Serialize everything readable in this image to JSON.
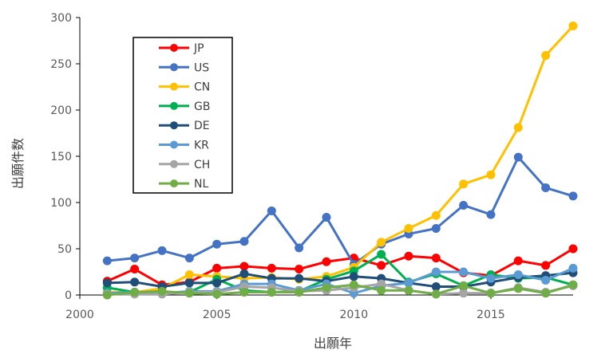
{
  "chart_data": {
    "type": "line",
    "xlabel": "出願年",
    "ylabel": "出願件数",
    "xlim": [
      2000,
      2018
    ],
    "ylim": [
      0,
      300
    ],
    "x_ticks": [
      2000,
      2005,
      2010,
      2015
    ],
    "y_ticks": [
      0,
      50,
      100,
      150,
      200,
      250,
      300
    ],
    "grid": false,
    "legend_position": "top-left",
    "x": [
      2001,
      2002,
      2003,
      2004,
      2005,
      2006,
      2007,
      2008,
      2009,
      2010,
      2011,
      2012,
      2013,
      2014,
      2015,
      2016,
      2017,
      2018
    ],
    "series": [
      {
        "name": "JP",
        "color": "#FF0000",
        "values": [
          15,
          28,
          11,
          14,
          29,
          31,
          29,
          28,
          36,
          40,
          32,
          42,
          40,
          24,
          21,
          37,
          32,
          50
        ]
      },
      {
        "name": "US",
        "color": "#4472C4",
        "values": [
          37,
          40,
          48,
          40,
          55,
          58,
          91,
          51,
          84,
          33,
          55,
          66,
          72,
          97,
          87,
          149,
          116,
          107
        ]
      },
      {
        "name": "CN",
        "color": "#FFC000",
        "values": [
          3,
          3,
          7,
          22,
          20,
          18,
          19,
          17,
          20,
          30,
          57,
          72,
          86,
          120,
          130,
          181,
          259,
          291
        ]
      },
      {
        "name": "GB",
        "color": "#00B050",
        "values": [
          8,
          3,
          2,
          3,
          17,
          5,
          3,
          4,
          17,
          26,
          44,
          14,
          23,
          10,
          22,
          18,
          19,
          11
        ]
      },
      {
        "name": "DE",
        "color": "#1F4E79",
        "values": [
          13,
          14,
          9,
          13,
          13,
          23,
          18,
          18,
          15,
          20,
          18,
          13,
          9,
          9,
          14,
          19,
          21,
          24
        ]
      },
      {
        "name": "KR",
        "color": "#5B9BD5",
        "values": [
          2,
          3,
          2,
          4,
          4,
          12,
          12,
          5,
          12,
          2,
          10,
          13,
          25,
          25,
          18,
          22,
          16,
          29
        ]
      },
      {
        "name": "CH",
        "color": "#A5A5A5",
        "values": [
          1,
          1,
          1,
          3,
          3,
          9,
          8,
          4,
          5,
          8,
          12,
          5,
          1,
          2,
          2,
          8,
          3,
          10
        ]
      },
      {
        "name": "NL",
        "color": "#70AD47",
        "values": [
          0,
          3,
          4,
          2,
          1,
          3,
          3,
          3,
          8,
          11,
          5,
          5,
          1,
          10,
          2,
          7,
          2,
          11
        ]
      }
    ]
  }
}
